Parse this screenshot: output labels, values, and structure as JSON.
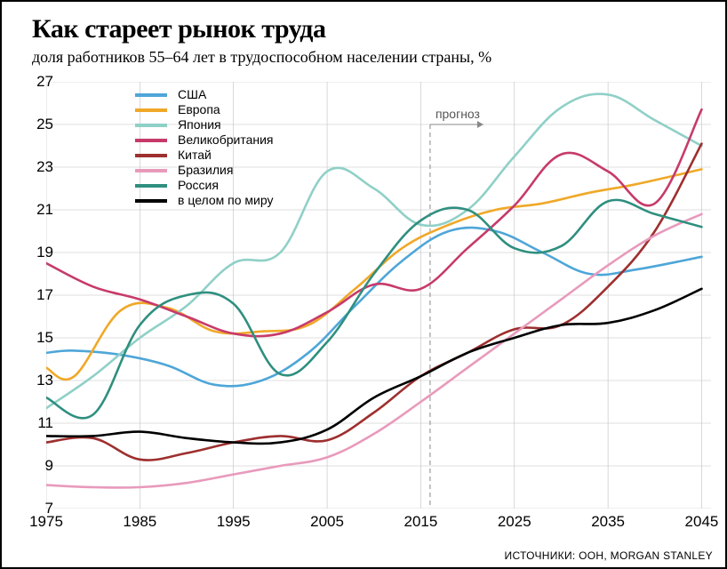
{
  "title": "Как стареет рынок труда",
  "subtitle": "доля работников 55–64 лет в трудоспособном населении страны, %",
  "source": "ИСТОЧНИКИ: ООН, MORGAN STANLEY",
  "chart": {
    "type": "line",
    "background_color": "#ffffff",
    "border_color": "#000000",
    "grid_color": "#bfbfbf",
    "grid_stroke": 0.6,
    "axis_fontsize": 17,
    "title_fontsize": 30,
    "subtitle_fontsize": 18,
    "legend_fontsize": 14,
    "line_width": 2.6,
    "xlim": [
      1975,
      2046
    ],
    "ylim": [
      7,
      27
    ],
    "xtick_step": 10,
    "xticks": [
      1975,
      1985,
      1995,
      2005,
      2015,
      2025,
      2035,
      2045
    ],
    "ytick_step": 2,
    "yticks": [
      7,
      9,
      11,
      13,
      15,
      17,
      19,
      21,
      23,
      25,
      27
    ],
    "forecast_x": 2016,
    "forecast_label": "прогноз",
    "forecast_color": "#888888",
    "forecast_arrow_color": "#888888",
    "smoothing": "cubic",
    "series": [
      {
        "name": "США",
        "color": "#4ea6d8",
        "x": [
          1975,
          1978,
          1983,
          1988,
          1993,
          1998,
          2003,
          2008,
          2013,
          2018,
          2023,
          2028,
          2033,
          2038,
          2045
        ],
        "y": [
          14.3,
          14.4,
          14.2,
          13.7,
          12.8,
          13.0,
          14.3,
          16.5,
          18.6,
          20.0,
          20.0,
          19.0,
          18.0,
          18.2,
          18.8
        ]
      },
      {
        "name": "Европа",
        "color": "#f0a828",
        "x": [
          1975,
          1978,
          1983,
          1988,
          1993,
          1998,
          2003,
          2008,
          2013,
          2018,
          2023,
          2028,
          2033,
          2038,
          2045
        ],
        "y": [
          13.6,
          13.2,
          16.3,
          16.4,
          15.3,
          15.3,
          15.6,
          17.3,
          19.2,
          20.3,
          21.0,
          21.3,
          21.8,
          22.2,
          22.9
        ]
      },
      {
        "name": "Япония",
        "color": "#8fd0c7",
        "x": [
          1975,
          1980,
          1985,
          1990,
          1995,
          2000,
          2005,
          2010,
          2015,
          2020,
          2025,
          2030,
          2035,
          2040,
          2045
        ],
        "y": [
          11.7,
          13.2,
          15.0,
          16.5,
          18.5,
          19.0,
          22.8,
          22.0,
          20.3,
          21.0,
          23.5,
          25.8,
          26.4,
          25.2,
          24.0
        ]
      },
      {
        "name": "Великобритания",
        "color": "#c73a6a",
        "x": [
          1975,
          1980,
          1985,
          1990,
          1995,
          2000,
          2005,
          2010,
          2015,
          2020,
          2025,
          2030,
          2035,
          2040,
          2045
        ],
        "y": [
          18.5,
          17.4,
          16.8,
          16.0,
          15.2,
          15.2,
          16.2,
          17.5,
          17.3,
          19.2,
          21.2,
          23.6,
          22.8,
          21.3,
          25.7
        ]
      },
      {
        "name": "Китай",
        "color": "#9e2f2f",
        "x": [
          1975,
          1980,
          1985,
          1990,
          1995,
          2000,
          2005,
          2010,
          2015,
          2020,
          2025,
          2030,
          2035,
          2040,
          2045
        ],
        "y": [
          10.1,
          10.3,
          9.3,
          9.6,
          10.1,
          10.4,
          10.2,
          11.5,
          13.2,
          14.3,
          15.4,
          15.6,
          17.4,
          20.0,
          24.1
        ]
      },
      {
        "name": "Бразилия",
        "color": "#e89abb",
        "x": [
          1975,
          1980,
          1985,
          1990,
          1995,
          2000,
          2005,
          2010,
          2015,
          2020,
          2025,
          2030,
          2035,
          2040,
          2045
        ],
        "y": [
          8.1,
          8.0,
          8.0,
          8.2,
          8.6,
          9.0,
          9.4,
          10.5,
          12.0,
          13.6,
          15.2,
          16.8,
          18.4,
          19.8,
          20.8
        ]
      },
      {
        "name": "Россия",
        "color": "#2f8f7f",
        "x": [
          1975,
          1980,
          1985,
          1990,
          1995,
          2000,
          2005,
          2010,
          2015,
          2020,
          2025,
          2030,
          2035,
          2040,
          2045
        ],
        "y": [
          12.2,
          11.4,
          15.6,
          17.0,
          16.6,
          13.3,
          14.8,
          18.0,
          20.5,
          21.0,
          19.2,
          19.3,
          21.4,
          20.8,
          20.2
        ]
      },
      {
        "name": "в целом по миру",
        "color": "#000000",
        "x": [
          1975,
          1980,
          1985,
          1990,
          1995,
          2000,
          2005,
          2010,
          2015,
          2020,
          2025,
          2030,
          2035,
          2040,
          2045
        ],
        "y": [
          10.4,
          10.4,
          10.6,
          10.3,
          10.1,
          10.1,
          10.7,
          12.2,
          13.2,
          14.3,
          15.0,
          15.6,
          15.7,
          16.3,
          17.3
        ]
      }
    ]
  }
}
